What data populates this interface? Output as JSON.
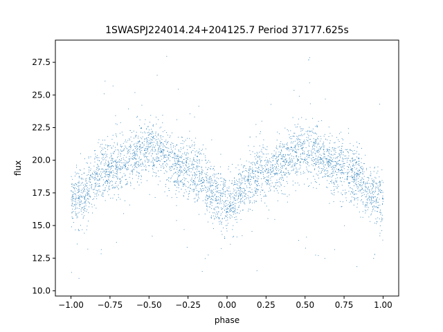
{
  "chart_data": {
    "type": "scatter",
    "title": "1SWASPJ224014.24+204125.7 Period 37177.625s",
    "xlabel": "phase",
    "ylabel": "flux",
    "xlim": [
      -1.1,
      1.1
    ],
    "ylim": [
      9.6,
      29.2
    ],
    "xticks": [
      -1.0,
      -0.75,
      -0.5,
      -0.25,
      0.0,
      0.25,
      0.5,
      0.75,
      1.0
    ],
    "xtick_labels": [
      "−1.00",
      "−0.75",
      "−0.50",
      "−0.25",
      "0.00",
      "0.25",
      "0.50",
      "0.75",
      "1.00"
    ],
    "yticks": [
      10.0,
      12.5,
      15.0,
      17.5,
      20.0,
      22.5,
      25.0,
      27.5
    ],
    "ytick_labels": [
      "10.0",
      "12.5",
      "15.0",
      "17.5",
      "20.0",
      "22.5",
      "25.0",
      "27.5"
    ],
    "grid": false,
    "marker_color": "#1f77b4",
    "series": [
      {
        "x_range": [
          -1.0,
          1.0
        ],
        "shape": "sinusoidal folded light curve, minima at phase -1, 0, 1 and maxima near phase -0.5 and 0.5",
        "trend": [
          {
            "x": -1.0,
            "y": 16.9
          },
          {
            "x": -0.75,
            "y": 19.3
          },
          {
            "x": -0.5,
            "y": 20.8
          },
          {
            "x": -0.25,
            "y": 19.2
          },
          {
            "x": 0.0,
            "y": 16.8
          },
          {
            "x": 0.25,
            "y": 19.2
          },
          {
            "x": 0.5,
            "y": 20.8
          },
          {
            "x": 0.75,
            "y": 19.3
          },
          {
            "x": 1.0,
            "y": 16.9
          }
        ],
        "scatter_spread": 1.1
      }
    ]
  }
}
